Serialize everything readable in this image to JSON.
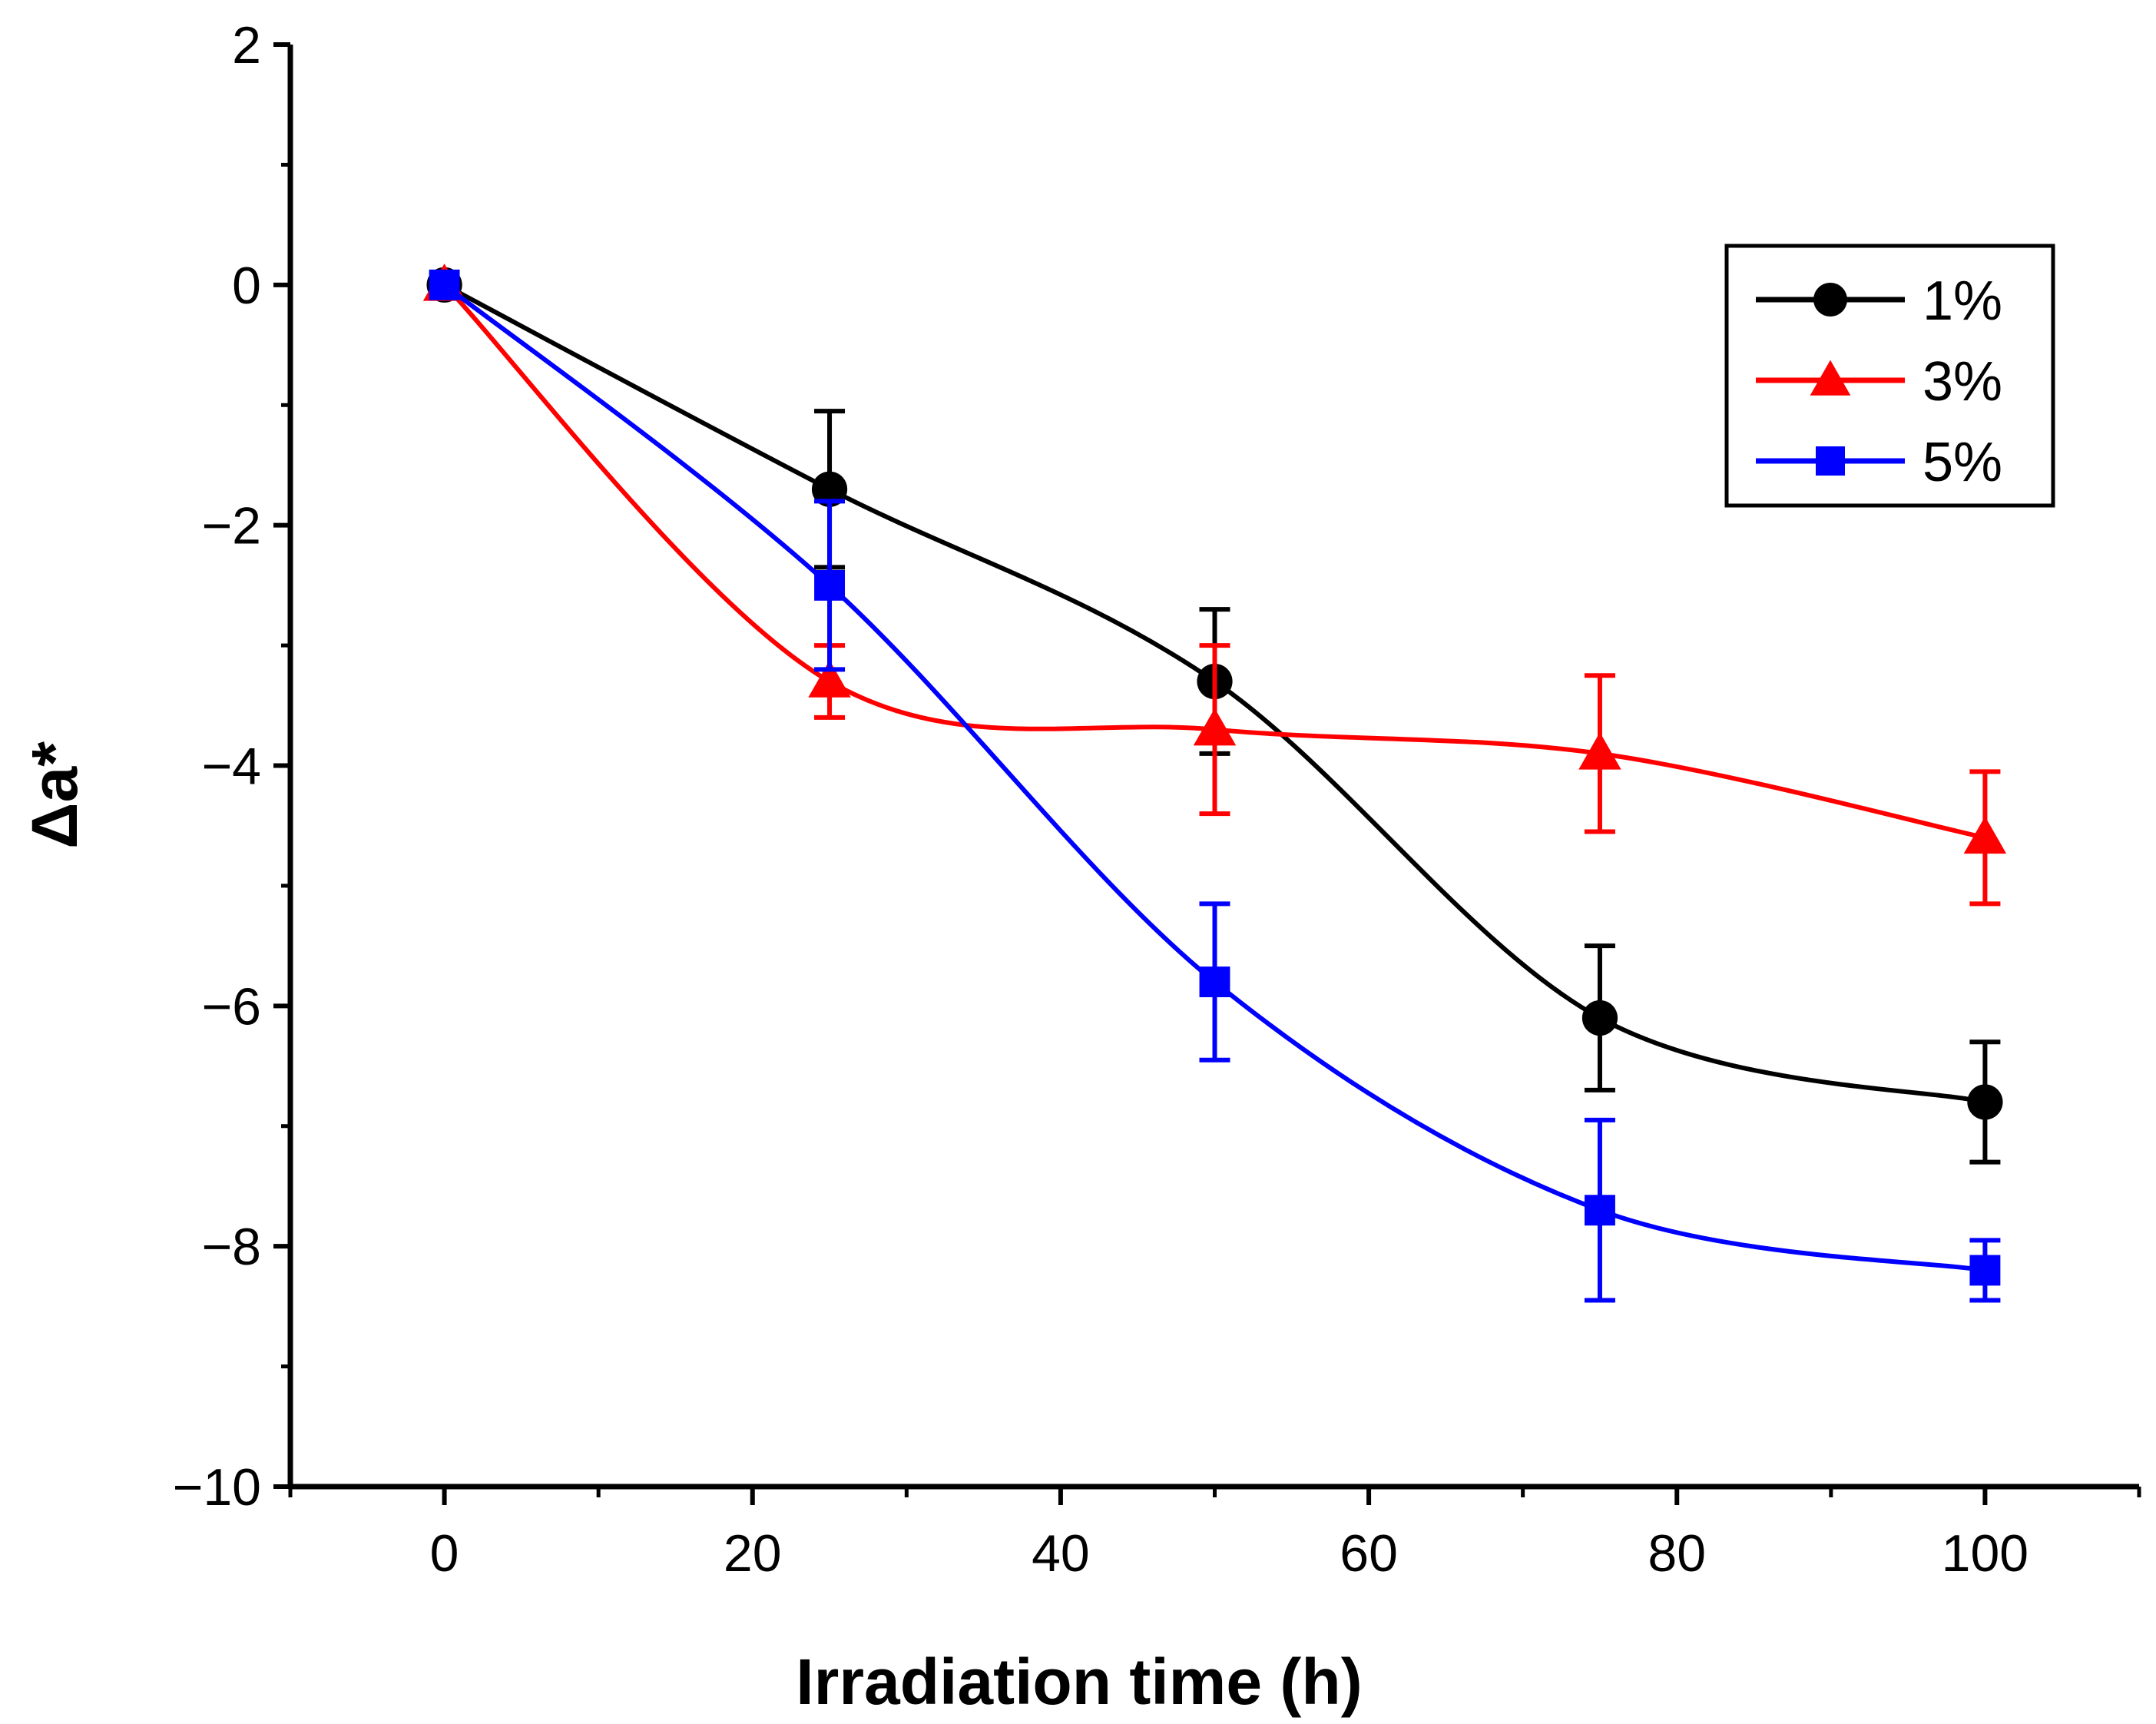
{
  "chart_data": {
    "type": "line",
    "title": "",
    "xlabel": "Irradiation time (h)",
    "ylabel": "Δa*",
    "xlim": [
      -10,
      110
    ],
    "ylim": [
      -10,
      2
    ],
    "xticks": [
      0,
      20,
      40,
      60,
      80,
      100
    ],
    "xtick_labels": [
      "0",
      "20",
      "40",
      "60",
      "80",
      "100"
    ],
    "yticks": [
      2,
      0,
      -2,
      -4,
      -6,
      -8,
      -10
    ],
    "ytick_labels": [
      "2",
      "0",
      "−2",
      "−4",
      "−6",
      "−8",
      "−10"
    ],
    "legend_position": "top-right",
    "grid": false,
    "series": [
      {
        "name": "1%",
        "color": "#000000",
        "marker": "circle",
        "x": [
          0,
          25,
          50,
          75,
          100
        ],
        "y": [
          0,
          -1.7,
          -3.3,
          -6.1,
          -6.8
        ],
        "err": [
          0,
          0.65,
          0.6,
          0.6,
          0.5
        ]
      },
      {
        "name": "3%",
        "color": "#ff0000",
        "marker": "triangle",
        "x": [
          0,
          25,
          50,
          75,
          100
        ],
        "y": [
          0,
          -3.3,
          -3.7,
          -3.9,
          -4.6
        ],
        "err": [
          0,
          0.3,
          0.7,
          0.65,
          0.55
        ]
      },
      {
        "name": "5%",
        "color": "#0000ff",
        "marker": "square",
        "x": [
          0,
          25,
          50,
          75,
          100
        ],
        "y": [
          0,
          -2.5,
          -5.8,
          -7.7,
          -8.2
        ],
        "err": [
          0,
          0.7,
          0.65,
          0.75,
          0.25
        ]
      }
    ]
  }
}
